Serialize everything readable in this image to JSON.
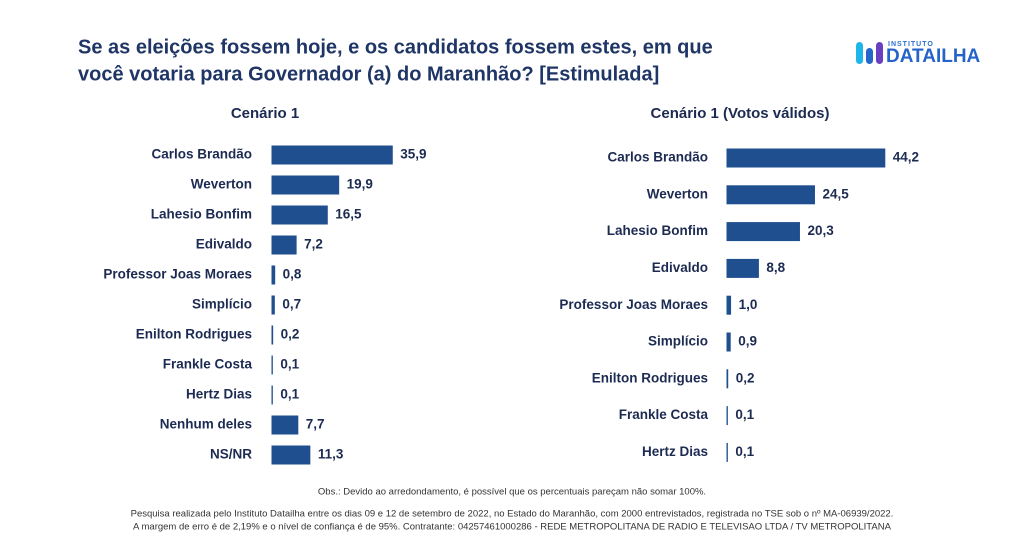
{
  "header": {
    "title_lines": [
      "Se as eleições fossem hoje, e os candidatos fossem estes, em que",
      "você votaria para Governador (a) do Maranhão? [Estimulada]"
    ],
    "logo": {
      "small": "INSTITUTO",
      "name": "DATAILHA"
    }
  },
  "chart_data": [
    {
      "type": "bar",
      "orientation": "horizontal",
      "title": "Cenário 1",
      "color": "#1f4f8f",
      "categories": [
        "Carlos Brandão",
        "Weverton",
        "Lahesio Bonfim",
        "Edivaldo",
        "Professor Joas Moraes",
        "Simplício",
        "Enilton Rodrigues",
        "Frankle Costa",
        "Hertz Dias",
        "Nenhum deles",
        "NS/NR"
      ],
      "values": [
        35.9,
        19.9,
        16.5,
        7.2,
        0.8,
        0.7,
        0.2,
        0.1,
        0.1,
        7.7,
        11.3
      ],
      "value_labels": [
        "35,9",
        "19,9",
        "16,5",
        "7,2",
        "0,8",
        "0,7",
        "0,2",
        "0,1",
        "0,1",
        "7,7",
        "11,3"
      ]
    },
    {
      "type": "bar",
      "orientation": "horizontal",
      "title": "Cenário 1 (Votos válidos)",
      "color": "#1f4f8f",
      "categories": [
        "Carlos Brandão",
        "Weverton",
        "Lahesio Bonfim",
        "Edivaldo",
        "Professor Joas Moraes",
        "Simplício",
        "Enilton Rodrigues",
        "Frankle Costa",
        "Hertz Dias"
      ],
      "values": [
        44.2,
        24.5,
        20.3,
        8.8,
        1.0,
        0.9,
        0.2,
        0.1,
        0.1
      ],
      "value_labels": [
        "44,2",
        "24,5",
        "20,3",
        "8,8",
        "1,0",
        "0,9",
        "0,2",
        "0,1",
        "0,1"
      ]
    }
  ],
  "footer": {
    "note": "Obs.: Devido ao arredondamento, é possível que os percentuais pareçam não somar 100%.",
    "lines": [
      "Pesquisa realizada pelo Instituto Datailha entre os dias 09 e 12 de setembro de 2022, no Estado do Maranhão, com 2000 entrevistados, registrada no TSE sob o nº MA-06939/2022.",
      "A margem de erro é de 2,19% e o nível de confiança é de 95%. Contratante: 04257461000286 - REDE METROPOLITANA DE RADIO E TELEVISAO LTDA / TV METROPOLITANA"
    ]
  }
}
